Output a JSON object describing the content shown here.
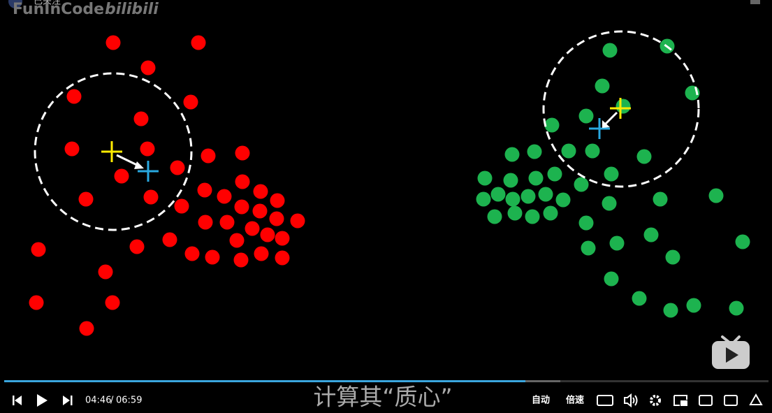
{
  "header": {
    "channel": "FunInCode",
    "logo": "bilibili",
    "follow": "已关注"
  },
  "player": {
    "current_time": "04:46",
    "separator": "/",
    "duration": "06:59",
    "subtitle": "计算其“质心”",
    "auto": "自动",
    "speed": "倍速"
  }
}
